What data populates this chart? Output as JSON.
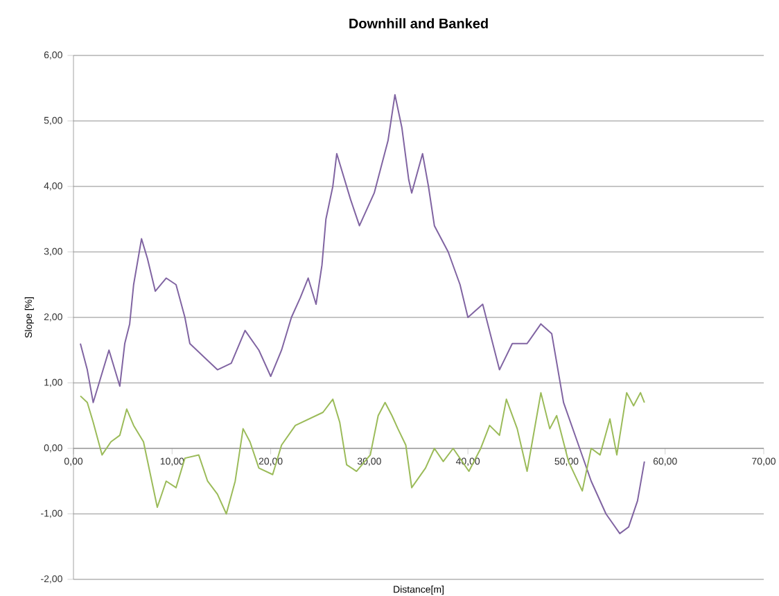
{
  "chart_data": {
    "type": "line",
    "title": "Downhill and Banked",
    "xlabel": "Distance[m]",
    "ylabel": "Slope [%]",
    "xlim": [
      0,
      70
    ],
    "ylim": [
      -2,
      6
    ],
    "xticks": [
      {
        "value": 0,
        "label": "0,00"
      },
      {
        "value": 10,
        "label": "10,00"
      },
      {
        "value": 20,
        "label": "20,00"
      },
      {
        "value": 30,
        "label": "30,00"
      },
      {
        "value": 40,
        "label": "40,00"
      },
      {
        "value": 50,
        "label": "50,00"
      },
      {
        "value": 60,
        "label": "60,00"
      },
      {
        "value": 70,
        "label": "70,00"
      }
    ],
    "yticks": [
      {
        "value": -2,
        "label": "-2,00"
      },
      {
        "value": -1,
        "label": "-1,00"
      },
      {
        "value": 0,
        "label": "0,00"
      },
      {
        "value": 1,
        "label": "1,00"
      },
      {
        "value": 2,
        "label": "2,00"
      },
      {
        "value": 3,
        "label": "3,00"
      },
      {
        "value": 4,
        "label": "4,00"
      },
      {
        "value": 5,
        "label": "5,00"
      },
      {
        "value": 6,
        "label": "6,00"
      }
    ],
    "grid": "y",
    "marker": "none",
    "line_style": "solid",
    "series": [
      {
        "color": "#8064a2",
        "x": [
          0.7,
          1.4,
          2.0,
          2.6,
          3.6,
          4.7,
          5.2,
          5.7,
          6.1,
          6.9,
          7.5,
          8.3,
          9.4,
          10.4,
          11.3,
          11.8,
          14.6,
          16.0,
          17.4,
          18.8,
          20.0,
          21.1,
          22.1,
          23.0,
          23.8,
          24.6,
          25.2,
          25.6,
          26.3,
          26.7,
          28.1,
          29.0,
          30.5,
          31.9,
          32.6,
          33.3,
          34.0,
          34.3,
          35.4,
          36.0,
          36.6,
          38.0,
          39.2,
          40.0,
          41.5,
          43.2,
          44.5,
          46.0,
          47.4,
          48.5,
          49.7,
          51.1,
          52.5,
          54.0,
          55.4,
          56.3,
          57.2,
          57.9
        ],
        "values": [
          1.6,
          1.2,
          0.7,
          1.0,
          1.5,
          0.95,
          1.6,
          1.9,
          2.5,
          3.2,
          2.9,
          2.4,
          2.6,
          2.5,
          2.0,
          1.6,
          1.2,
          1.3,
          1.8,
          1.5,
          1.1,
          1.5,
          2.0,
          2.3,
          2.6,
          2.2,
          2.8,
          3.5,
          4.0,
          4.5,
          3.8,
          3.4,
          3.9,
          4.7,
          5.4,
          4.9,
          4.1,
          3.9,
          4.5,
          4.0,
          3.4,
          3.0,
          2.5,
          2.0,
          2.2,
          1.2,
          1.6,
          1.6,
          1.9,
          1.75,
          0.7,
          0.1,
          -0.5,
          -1.0,
          -1.3,
          -1.2,
          -0.8,
          -0.2
        ]
      },
      {
        "color": "#9bbb59",
        "x": [
          0.7,
          1.4,
          2.0,
          2.9,
          3.8,
          4.7,
          5.4,
          6.1,
          7.1,
          7.8,
          8.5,
          9.4,
          10.4,
          11.3,
          12.7,
          13.6,
          14.6,
          15.5,
          16.4,
          17.2,
          17.9,
          18.8,
          20.2,
          21.1,
          22.5,
          23.9,
          25.3,
          26.3,
          27.0,
          27.7,
          28.7,
          30.1,
          30.9,
          31.6,
          32.3,
          32.9,
          33.7,
          34.3,
          35.7,
          36.6,
          37.5,
          38.5,
          40.1,
          41.3,
          42.2,
          43.2,
          43.9,
          45.0,
          46.0,
          47.4,
          48.3,
          49.0,
          50.2,
          51.6,
          52.5,
          53.4,
          54.4,
          55.1,
          56.1,
          56.8,
          57.5,
          57.9
        ],
        "values": [
          0.8,
          0.7,
          0.4,
          -0.1,
          0.1,
          0.2,
          0.6,
          0.35,
          0.1,
          -0.4,
          -0.9,
          -0.5,
          -0.6,
          -0.15,
          -0.1,
          -0.5,
          -0.7,
          -1.0,
          -0.5,
          0.3,
          0.1,
          -0.3,
          -0.4,
          0.05,
          0.35,
          0.45,
          0.55,
          0.75,
          0.4,
          -0.25,
          -0.35,
          -0.1,
          0.5,
          0.7,
          0.5,
          0.3,
          0.05,
          -0.6,
          -0.3,
          0.0,
          -0.2,
          0.0,
          -0.35,
          0.0,
          0.35,
          0.2,
          0.75,
          0.3,
          -0.35,
          0.85,
          0.3,
          0.5,
          -0.2,
          -0.65,
          0.0,
          -0.1,
          0.45,
          -0.1,
          0.85,
          0.65,
          0.85,
          0.7
        ]
      }
    ]
  }
}
